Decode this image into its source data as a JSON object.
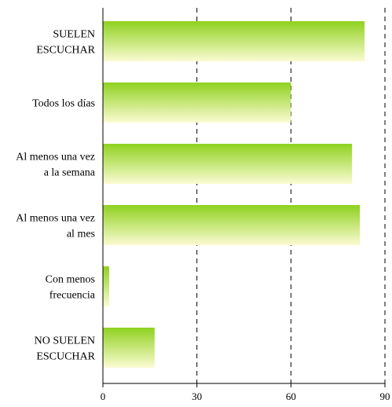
{
  "chart_data": {
    "type": "bar",
    "orientation": "horizontal",
    "categories": [
      [
        "SUELEN",
        "ESCUCHAR"
      ],
      [
        "Todos los días"
      ],
      [
        "Al menos una vez",
        "a la semana"
      ],
      [
        "Al menos una vez",
        "al mes"
      ],
      [
        "Con menos",
        "frecuencia"
      ],
      [
        "NO SUELEN",
        "ESCUCHAR"
      ]
    ],
    "values": [
      83.5,
      60,
      79.5,
      82,
      2,
      16.5
    ],
    "xlim": [
      0,
      90
    ],
    "xticks": [
      "0",
      "30",
      "60",
      "90"
    ],
    "grid": "vertical dashed",
    "bar_gradient": {
      "top": "#8fd11f",
      "bottom": "#fbfbd2"
    },
    "colors": {
      "axis": "#000000",
      "grid": "#000000"
    }
  }
}
